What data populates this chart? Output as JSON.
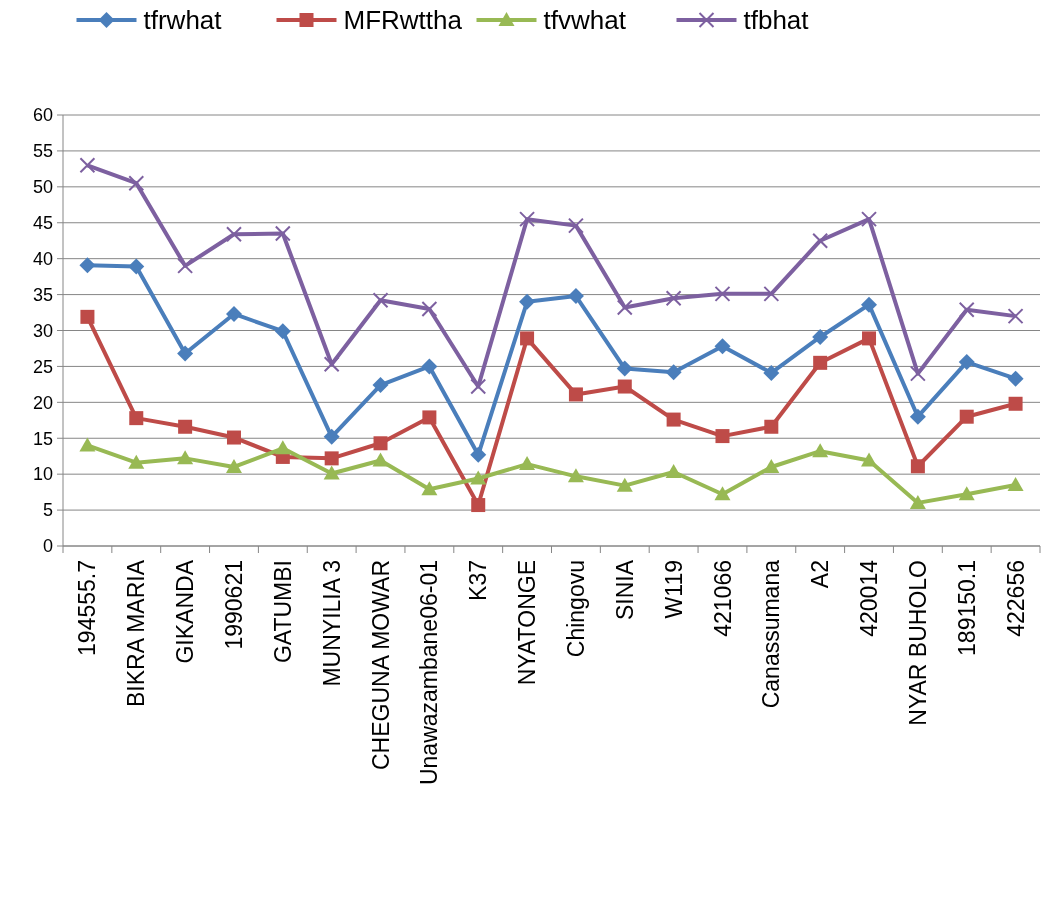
{
  "chart_data": {
    "type": "line",
    "categories": [
      "194555.7",
      "BIKRA MARIA",
      "GIKANDA",
      "1990621",
      "GATUMBI",
      "MUNYILIA 3",
      "CHEGUNA MOWAR",
      "Unawazambane06-01",
      "K37",
      "NYATONGE",
      "Chingovu",
      "SINIA",
      "W119",
      "421066",
      "Canassumana",
      "A2",
      "420014",
      "NYAR BUHOLO",
      "189150.1",
      "422656"
    ],
    "series": [
      {
        "name": "tfrwhat",
        "color": "#4a7ebb",
        "marker": "diamond",
        "values": [
          39.1,
          38.9,
          26.8,
          32.3,
          29.9,
          15.2,
          22.4,
          25.0,
          12.7,
          34.0,
          34.8,
          24.7,
          24.2,
          27.8,
          24.1,
          29.1,
          33.6,
          18.0,
          25.6,
          23.3
        ]
      },
      {
        "name": "MFRwttha",
        "color": "#be4b48",
        "marker": "square",
        "values": [
          31.9,
          17.8,
          16.6,
          15.1,
          12.4,
          12.2,
          14.3,
          17.9,
          5.7,
          28.9,
          21.1,
          22.2,
          17.6,
          15.3,
          16.6,
          25.5,
          28.9,
          11.1,
          18.0,
          19.8
        ]
      },
      {
        "name": "tfvwhat",
        "color": "#98b954",
        "marker": "triangle",
        "values": [
          14.0,
          11.6,
          12.2,
          11.0,
          13.6,
          10.1,
          11.9,
          7.9,
          9.4,
          11.4,
          9.7,
          8.4,
          10.3,
          7.2,
          11.0,
          13.2,
          11.9,
          6.0,
          7.2,
          8.5
        ]
      },
      {
        "name": "tfbhat",
        "color": "#7d60a0",
        "marker": "cross",
        "values": [
          53.0,
          50.5,
          39.0,
          43.4,
          43.5,
          25.3,
          34.2,
          33.0,
          22.2,
          45.5,
          44.6,
          33.2,
          34.5,
          35.1,
          35.1,
          42.5,
          45.5,
          24.0,
          32.9,
          32.0
        ]
      }
    ],
    "ylim": [
      0,
      60
    ],
    "yticks": [
      0,
      5,
      10,
      15,
      20,
      25,
      30,
      35,
      40,
      45,
      50,
      55,
      60
    ],
    "grid": "y",
    "legend": "top",
    "line_style": "solid"
  }
}
